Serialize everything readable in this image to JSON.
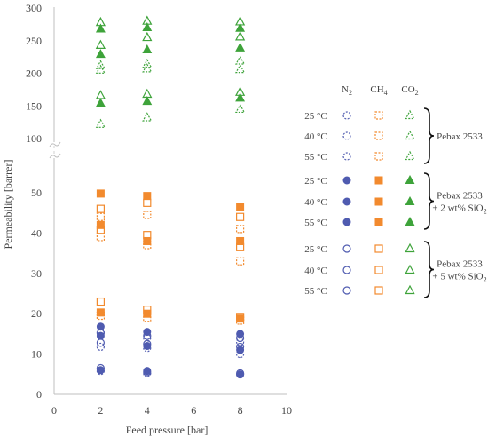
{
  "chart_data": {
    "type": "scatter",
    "xlabel": "Feed pressure [bar]",
    "ylabel": "Permeability [barrer]",
    "xlim": [
      0,
      10
    ],
    "x_ticks": [
      "0",
      "2",
      "4",
      "6",
      "8",
      "10"
    ],
    "y_ticks_lower": [
      "0",
      "10",
      "20",
      "30",
      "40",
      "50"
    ],
    "y_ticks_upper": [
      "100",
      "150",
      "200",
      "250",
      "300"
    ],
    "axis_break": "between 50 and 100",
    "grid": false,
    "colors": {
      "N2": "#4f5bb0",
      "CH4": "#f28a2e",
      "CO2": "#3ea33a",
      "Pebax 2533": "grey-dashed",
      "text": "#444444"
    },
    "legend": {
      "placement": "right",
      "columns": [
        {
          "base": "N",
          "sub": "2"
        },
        {
          "base": "CH",
          "sub": "4"
        },
        {
          "base": "CO",
          "sub": "2"
        }
      ],
      "groups": [
        {
          "rows": [
            "25 °C",
            "40 °C",
            "55 °C"
          ],
          "style": "dashed",
          "label_lines": [
            {
              "text": "Pebax 2533"
            }
          ]
        },
        {
          "rows": [
            "25 °C",
            "40 °C",
            "55 °C"
          ],
          "style": "filled",
          "label_lines": [
            {
              "text": "Pebax 2533"
            },
            {
              "text": "+ 2 wt% SiO",
              "sub": "2"
            }
          ]
        },
        {
          "rows": [
            "25 °C",
            "40 °C",
            "55 °C"
          ],
          "style": "open",
          "label_lines": [
            {
              "text": "Pebax 2533"
            },
            {
              "text": "+ 5 wt% SiO",
              "sub": "2"
            }
          ]
        }
      ]
    },
    "series": [
      {
        "gas": "N2",
        "temp": "25",
        "membrane": "Pebax 2533",
        "style": "dashed",
        "x": [
          2,
          4,
          8
        ],
        "y": [
          5.8,
          5.2,
          5
        ]
      },
      {
        "gas": "N2",
        "temp": "40",
        "membrane": "Pebax 2533",
        "style": "dashed",
        "x": [
          2,
          4,
          8
        ],
        "y": [
          11.8,
          11.5,
          10
        ]
      },
      {
        "gas": "N2",
        "temp": "55",
        "membrane": "Pebax 2533",
        "style": "dashed",
        "x": [
          2,
          4,
          8
        ],
        "y": [
          15.5,
          14,
          13
        ]
      },
      {
        "gas": "CH4",
        "temp": "25",
        "membrane": "Pebax 2533",
        "style": "dashed",
        "x": [
          2,
          4,
          8
        ],
        "y": [
          19.5,
          19,
          18.3
        ]
      },
      {
        "gas": "CH4",
        "temp": "40",
        "membrane": "Pebax 2533",
        "style": "dashed",
        "x": [
          2,
          4,
          8
        ],
        "y": [
          39,
          37,
          33
        ]
      },
      {
        "gas": "CH4",
        "temp": "55",
        "membrane": "Pebax 2533",
        "style": "dashed",
        "x": [
          2,
          4,
          8
        ],
        "y": [
          44,
          44.5,
          41
        ]
      },
      {
        "gas": "CO2",
        "temp": "25",
        "membrane": "Pebax 2533",
        "style": "dashed",
        "x": [
          2,
          4,
          8
        ],
        "y": [
          122,
          132,
          145
        ]
      },
      {
        "gas": "CO2",
        "temp": "40",
        "membrane": "Pebax 2533",
        "style": "dashed",
        "x": [
          2,
          4,
          8
        ],
        "y": [
          205,
          207,
          206
        ]
      },
      {
        "gas": "CO2",
        "temp": "55",
        "membrane": "Pebax 2533",
        "style": "dashed",
        "x": [
          2,
          4,
          8
        ],
        "y": [
          212,
          214,
          219
        ]
      },
      {
        "gas": "N2",
        "temp": "25",
        "membrane": "Pebax 2533 + 2 wt% SiO2",
        "style": "filled",
        "x": [
          2,
          4,
          8
        ],
        "y": [
          6,
          5.8,
          4.9
        ]
      },
      {
        "gas": "N2",
        "temp": "40",
        "membrane": "Pebax 2533 + 2 wt% SiO2",
        "style": "filled",
        "x": [
          2,
          4,
          8
        ],
        "y": [
          14.5,
          12,
          11
        ]
      },
      {
        "gas": "N2",
        "temp": "55",
        "membrane": "Pebax 2533 + 2 wt% SiO2",
        "style": "filled",
        "x": [
          2,
          4,
          8
        ],
        "y": [
          16.8,
          15.5,
          15
        ]
      },
      {
        "gas": "CH4",
        "temp": "25",
        "membrane": "Pebax 2533 + 2 wt% SiO2",
        "style": "filled",
        "x": [
          2,
          4,
          8
        ],
        "y": [
          20.3,
          20,
          18.8
        ]
      },
      {
        "gas": "CH4",
        "temp": "40",
        "membrane": "Pebax 2533 + 2 wt% SiO2",
        "style": "filled",
        "x": [
          2,
          4,
          8
        ],
        "y": [
          42,
          38,
          38
        ]
      },
      {
        "gas": "CH4",
        "temp": "55",
        "membrane": "Pebax 2533 + 2 wt% SiO2",
        "style": "filled",
        "x": [
          2,
          4,
          8
        ],
        "y": [
          49.8,
          49.2,
          46.5
        ]
      },
      {
        "gas": "CO2",
        "temp": "25",
        "membrane": "Pebax 2533 + 2 wt% SiO2",
        "style": "filled",
        "x": [
          2,
          4,
          8
        ],
        "y": [
          154,
          157,
          162
        ]
      },
      {
        "gas": "CO2",
        "temp": "40",
        "membrane": "Pebax 2533 + 2 wt% SiO2",
        "style": "filled",
        "x": [
          2,
          4,
          8
        ],
        "y": [
          229,
          236,
          239
        ]
      },
      {
        "gas": "CO2",
        "temp": "55",
        "membrane": "Pebax 2533 + 2 wt% SiO2",
        "style": "filled",
        "x": [
          2,
          4,
          8
        ],
        "y": [
          268,
          270,
          269
        ]
      },
      {
        "gas": "N2",
        "temp": "25",
        "membrane": "Pebax 2533 + 5 wt% SiO2",
        "style": "open",
        "x": [
          2,
          4,
          8
        ],
        "y": [
          6.5,
          5.5,
          5.2
        ]
      },
      {
        "gas": "N2",
        "temp": "40",
        "membrane": "Pebax 2533 + 5 wt% SiO2",
        "style": "open",
        "x": [
          2,
          4,
          8
        ],
        "y": [
          12.8,
          12.5,
          11.8
        ]
      },
      {
        "gas": "N2",
        "temp": "55",
        "membrane": "Pebax 2533 + 5 wt% SiO2",
        "style": "open",
        "x": [
          2,
          4,
          8
        ],
        "y": [
          15.2,
          14.5,
          14
        ]
      },
      {
        "gas": "CH4",
        "temp": "25",
        "membrane": "Pebax 2533 + 5 wt% SiO2",
        "style": "open",
        "x": [
          2,
          4,
          8
        ],
        "y": [
          23,
          21,
          19.2
        ]
      },
      {
        "gas": "CH4",
        "temp": "40",
        "membrane": "Pebax 2533 + 5 wt% SiO2",
        "style": "open",
        "x": [
          2,
          4,
          8
        ],
        "y": [
          40.8,
          39.5,
          36.5
        ]
      },
      {
        "gas": "CH4",
        "temp": "55",
        "membrane": "Pebax 2533 + 5 wt% SiO2",
        "style": "open",
        "x": [
          2,
          4,
          8
        ],
        "y": [
          46,
          47.5,
          44
        ]
      },
      {
        "gas": "CO2",
        "temp": "25",
        "membrane": "Pebax 2533 + 5 wt% SiO2",
        "style": "open",
        "x": [
          2,
          4,
          8
        ],
        "y": [
          166,
          168,
          171
        ]
      },
      {
        "gas": "CO2",
        "temp": "40",
        "membrane": "Pebax 2533 + 5 wt% SiO2",
        "style": "open",
        "x": [
          2,
          4,
          8
        ],
        "y": [
          243,
          255,
          256
        ]
      },
      {
        "gas": "CO2",
        "temp": "55",
        "membrane": "Pebax 2533 + 5 wt% SiO2",
        "style": "open",
        "x": [
          2,
          4,
          8
        ],
        "y": [
          278,
          280,
          279
        ]
      }
    ]
  }
}
